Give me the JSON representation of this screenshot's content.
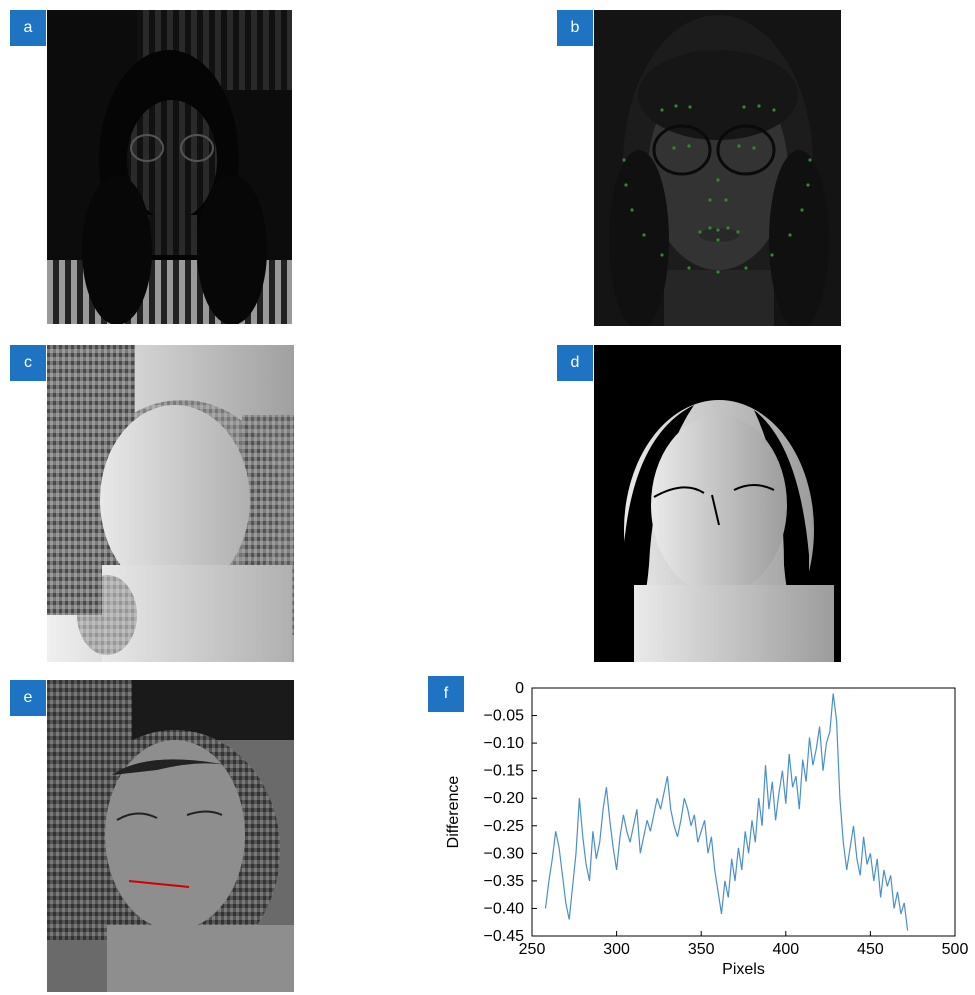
{
  "panels": [
    {
      "id": "a",
      "label": "a",
      "kind": "fringe-photo"
    },
    {
      "id": "b",
      "label": "b",
      "kind": "face-landmarks-photo"
    },
    {
      "id": "c",
      "label": "c",
      "kind": "wrapped-phase"
    },
    {
      "id": "d",
      "label": "d",
      "kind": "masked-phase"
    },
    {
      "id": "e",
      "label": "e",
      "kind": "phase-with-profile-line"
    },
    {
      "id": "f",
      "label": "f",
      "kind": "line-plot"
    }
  ],
  "colors": {
    "tag_bg": "#1f73c3",
    "tag_text": "#ffffff",
    "line": "#4a90c8",
    "profile_line": "#d40000"
  },
  "chart_data": {
    "type": "line",
    "xlabel": "Pixels",
    "ylabel": "Difference",
    "xlim": [
      250,
      500
    ],
    "ylim": [
      -0.45,
      0
    ],
    "xticks": [
      "250",
      "300",
      "350",
      "400",
      "450",
      "500"
    ],
    "yticks": [
      "0",
      "−0.05",
      "−0.10",
      "−0.15",
      "−0.20",
      "−0.25",
      "−0.30",
      "−0.35",
      "−0.40",
      "−0.45"
    ],
    "grid": false,
    "series": [
      {
        "x": [
          258,
          260,
          262,
          264,
          266,
          268,
          270,
          272,
          274,
          276,
          278,
          280,
          282,
          284,
          286,
          288,
          290,
          292,
          294,
          296,
          298,
          300,
          302,
          304,
          306,
          308,
          310,
          312,
          314,
          316,
          318,
          320,
          322,
          324,
          326,
          328,
          330,
          332,
          334,
          336,
          338,
          340,
          342,
          344,
          346,
          348,
          350,
          352,
          354,
          356,
          358,
          360,
          362,
          364,
          366,
          368,
          370,
          372,
          374,
          376,
          378,
          380,
          382,
          384,
          386,
          388,
          390,
          392,
          394,
          396,
          398,
          400,
          402,
          404,
          406,
          408,
          410,
          412,
          414,
          416,
          418,
          420,
          422,
          424,
          426,
          428,
          430,
          432,
          434,
          436,
          438,
          440,
          442,
          444,
          446,
          448,
          450,
          452,
          454,
          456,
          458,
          460,
          462,
          464,
          466,
          468,
          470,
          472
        ],
        "y": [
          -0.4,
          -0.35,
          -0.31,
          -0.26,
          -0.29,
          -0.34,
          -0.39,
          -0.42,
          -0.36,
          -0.3,
          -0.2,
          -0.27,
          -0.32,
          -0.35,
          -0.26,
          -0.31,
          -0.28,
          -0.22,
          -0.18,
          -0.24,
          -0.29,
          -0.33,
          -0.27,
          -0.23,
          -0.26,
          -0.28,
          -0.25,
          -0.22,
          -0.3,
          -0.27,
          -0.24,
          -0.26,
          -0.23,
          -0.2,
          -0.22,
          -0.19,
          -0.16,
          -0.22,
          -0.25,
          -0.27,
          -0.24,
          -0.2,
          -0.22,
          -0.25,
          -0.23,
          -0.28,
          -0.26,
          -0.24,
          -0.3,
          -0.27,
          -0.33,
          -0.37,
          -0.41,
          -0.35,
          -0.38,
          -0.31,
          -0.35,
          -0.29,
          -0.33,
          -0.26,
          -0.3,
          -0.24,
          -0.28,
          -0.2,
          -0.25,
          -0.14,
          -0.22,
          -0.17,
          -0.24,
          -0.19,
          -0.15,
          -0.21,
          -0.12,
          -0.18,
          -0.16,
          -0.22,
          -0.13,
          -0.17,
          -0.09,
          -0.14,
          -0.11,
          -0.07,
          -0.15,
          -0.1,
          -0.08,
          -0.01,
          -0.06,
          -0.2,
          -0.28,
          -0.33,
          -0.29,
          -0.25,
          -0.31,
          -0.34,
          -0.27,
          -0.32,
          -0.3,
          -0.35,
          -0.31,
          -0.38,
          -0.33,
          -0.36,
          -0.34,
          -0.4,
          -0.37,
          -0.41,
          -0.39,
          -0.44
        ]
      }
    ]
  }
}
